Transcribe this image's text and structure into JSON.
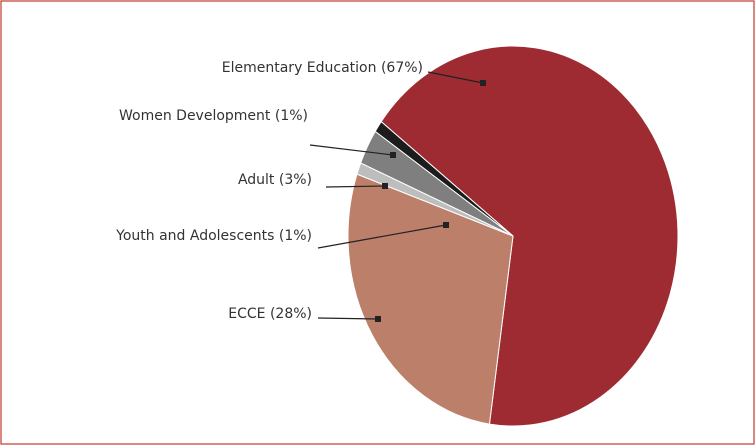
{
  "chart_data": {
    "type": "pie",
    "labels": [
      "Elementary Education (67%)",
      "ECCE (28%)",
      "Youth and Adolescents (1%)",
      "Adult (3%)",
      "Women Development (1%)"
    ],
    "values": [
      67,
      28,
      1,
      3,
      1
    ],
    "colors": [
      "#9e2b31",
      "#bb7f6a",
      "#bdbdbd",
      "#7f7f7f",
      "#1c1c1c"
    ]
  }
}
